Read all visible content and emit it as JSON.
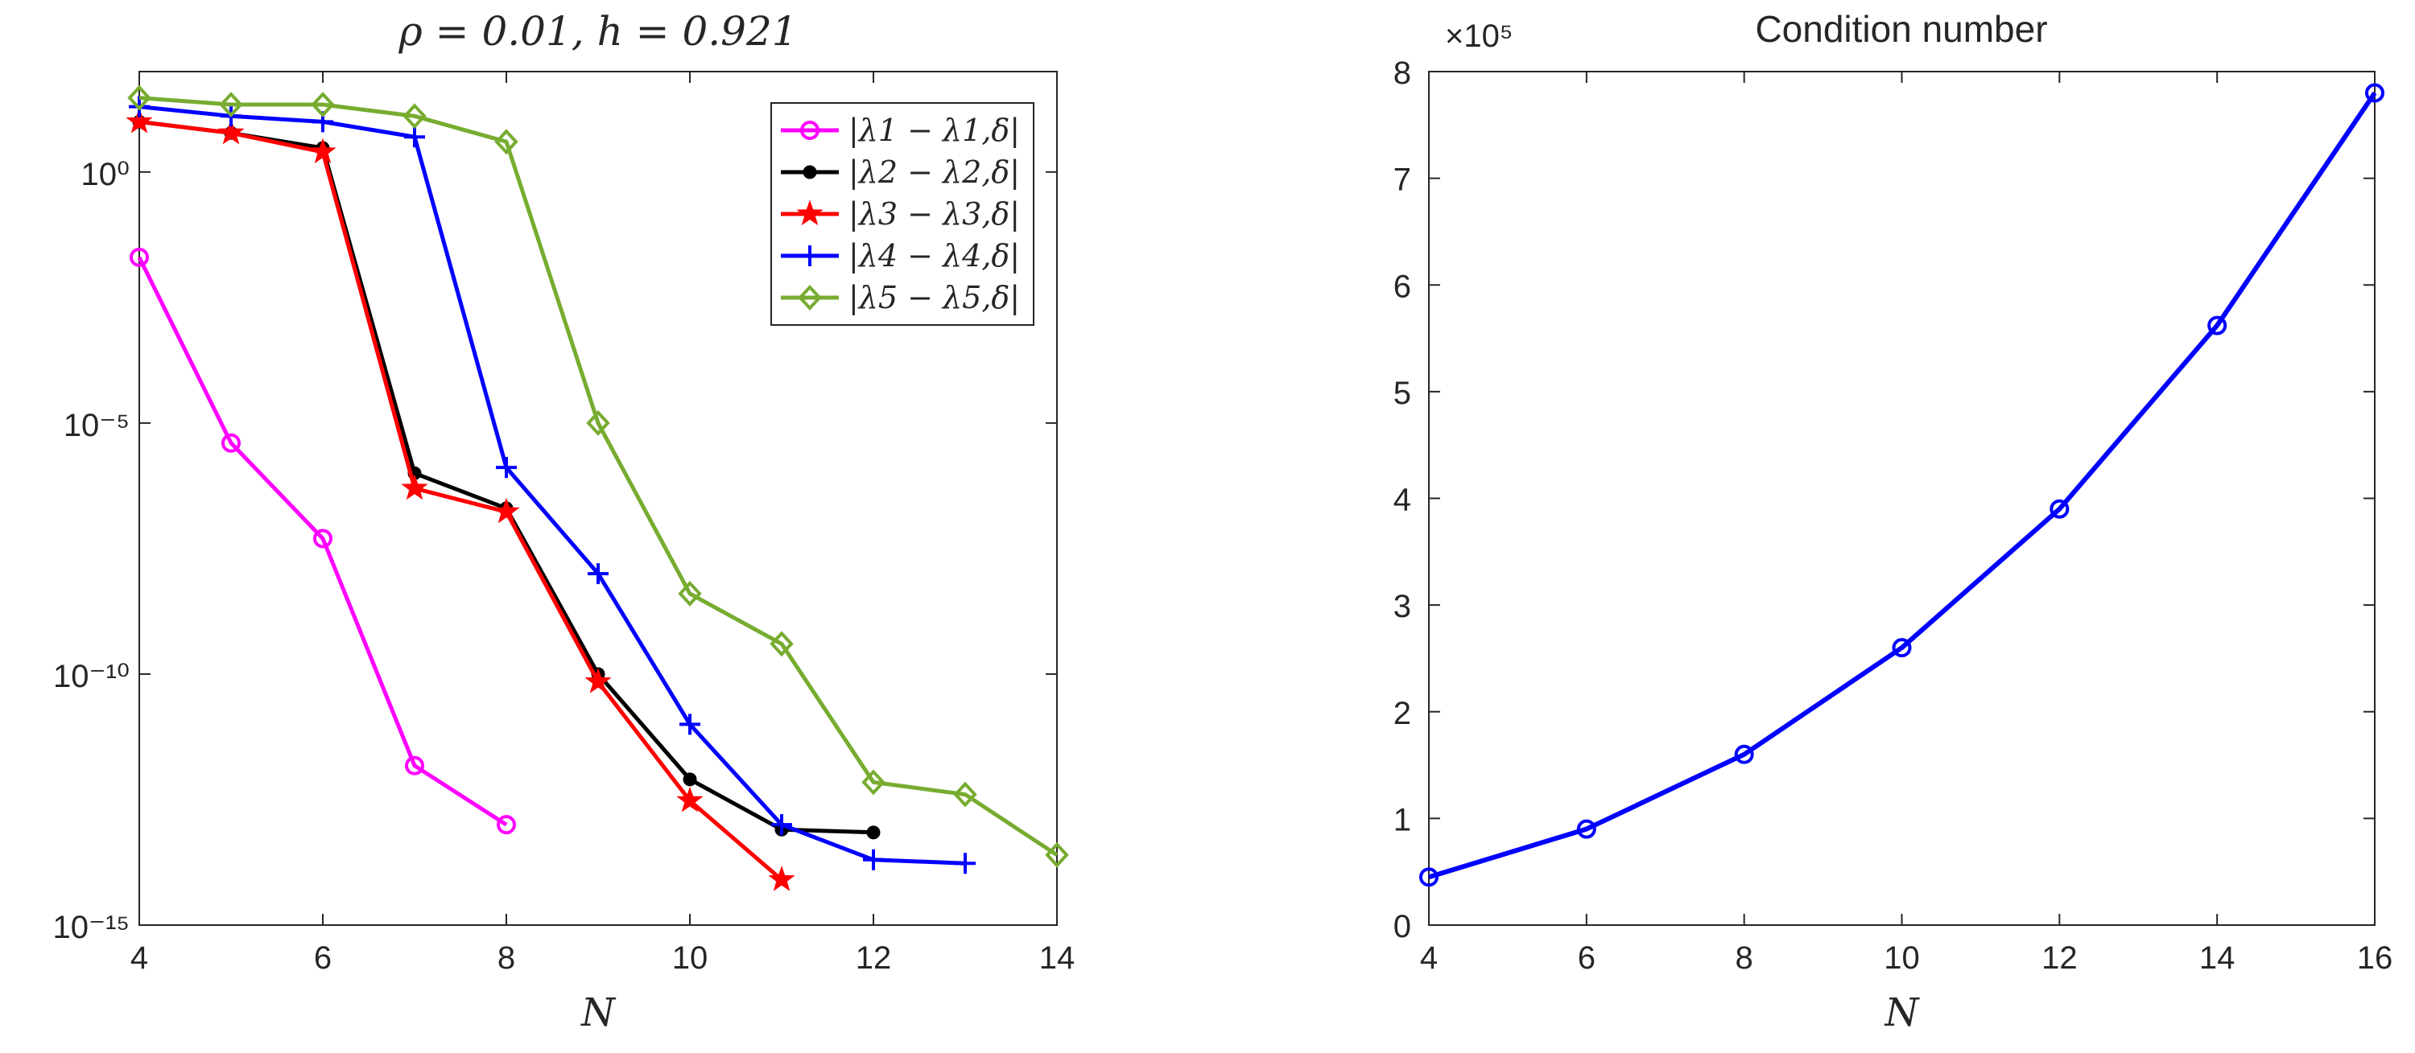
{
  "chart_data": [
    {
      "type": "line",
      "title": "ρ = 0.01, h = 0.921",
      "xlabel": "N",
      "ylabel": "",
      "xlim": [
        4,
        14
      ],
      "xticks": [
        4,
        6,
        8,
        10,
        12,
        14
      ],
      "yscale": "log",
      "ylim": [
        1e-15,
        100.0
      ],
      "yticks": [
        {
          "value": 1.0,
          "label": "10⁰"
        },
        {
          "value": 1e-05,
          "label": "10⁻⁵"
        },
        {
          "value": 1e-10,
          "label": "10⁻¹⁰"
        },
        {
          "value": 1e-15,
          "label": "10⁻¹⁵"
        }
      ],
      "grid": false,
      "legend_position": "top-right",
      "series": [
        {
          "name": "|λ1 − λ1,δ|",
          "color": "#ff00ff",
          "marker": "circle",
          "x": [
            4,
            5,
            6,
            7,
            8
          ],
          "y": [
            0.02,
            4e-06,
            5e-08,
            1.5e-12,
            1e-13
          ]
        },
        {
          "name": "|λ2 − λ2,δ|",
          "color": "#000000",
          "marker": "dot",
          "x": [
            4,
            5,
            6,
            7,
            8,
            9,
            10,
            11,
            12
          ],
          "y": [
            10,
            6,
            3,
            1e-06,
            2e-07,
            1e-10,
            8e-13,
            8e-14,
            7e-14
          ]
        },
        {
          "name": "|λ3 − λ3,δ|",
          "color": "#ff0000",
          "marker": "star",
          "x": [
            4,
            5,
            6,
            7,
            8,
            9,
            10,
            11
          ],
          "y": [
            10,
            6,
            2.5,
            5e-07,
            1.7e-07,
            7e-11,
            3e-13,
            8e-15
          ]
        },
        {
          "name": "|λ4 − λ4,δ|",
          "color": "#0000ff",
          "marker": "plus",
          "x": [
            4,
            5,
            6,
            7,
            8,
            9,
            10,
            11,
            12,
            13
          ],
          "y": [
            20,
            13,
            10,
            5,
            1.3e-06,
            1e-08,
            1e-11,
            1e-13,
            2e-14,
            1.7e-14
          ]
        },
        {
          "name": "|λ5 − λ5,δ|",
          "color": "#77ac30",
          "marker": "diamond",
          "x": [
            4,
            5,
            6,
            7,
            8,
            9,
            10,
            11,
            12,
            13,
            14
          ],
          "y": [
            30,
            22,
            22,
            13,
            4,
            1e-05,
            4e-09,
            4e-10,
            7e-13,
            4e-13,
            2.5e-14
          ]
        }
      ]
    },
    {
      "type": "line",
      "title": "Condition number",
      "xlabel": "N",
      "ylabel": "",
      "xlim": [
        4,
        16
      ],
      "xticks": [
        4,
        6,
        8,
        10,
        12,
        14,
        16
      ],
      "ylim": [
        0,
        8
      ],
      "yticks": [
        0,
        1,
        2,
        3,
        4,
        5,
        6,
        7,
        8
      ],
      "y_multiplier": "×10⁵",
      "grid": false,
      "series": [
        {
          "color": "#0000ff",
          "marker": "circle",
          "x": [
            4,
            6,
            8,
            10,
            12,
            14,
            16
          ],
          "y": [
            0.45,
            0.9,
            1.6,
            2.6,
            3.9,
            5.62,
            7.8
          ]
        }
      ]
    }
  ]
}
